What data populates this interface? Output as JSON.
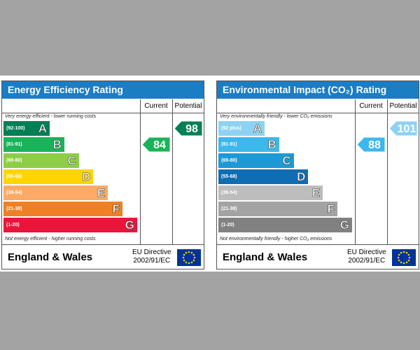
{
  "panels": [
    {
      "title": "Energy Efficiency Rating",
      "current_header": "Current",
      "potential_header": "Potential",
      "top_note": "Very energy efficient - lower running costs",
      "bottom_note": "Not energy efficient - higher running costs",
      "bands": [
        {
          "range": "(92-100)",
          "letter": "A",
          "color": "#008054"
        },
        {
          "range": "(81-91)",
          "letter": "B",
          "color": "#19b459"
        },
        {
          "range": "(69-80)",
          "letter": "C",
          "color": "#8dce46"
        },
        {
          "range": "(55-68)",
          "letter": "D",
          "color": "#ffd500"
        },
        {
          "range": "(39-54)",
          "letter": "E",
          "color": "#fcaa65"
        },
        {
          "range": "(21-38)",
          "letter": "F",
          "color": "#ef8023"
        },
        {
          "range": "(1-20)",
          "letter": "G",
          "color": "#e9153b"
        }
      ],
      "current": "84",
      "potential": "98",
      "region": "England & Wales",
      "directive": "EU Directive",
      "directive_code": "2002/91/EC"
    },
    {
      "title": "Environmental Impact (CO₂) Rating",
      "current_header": "Current",
      "potential_header": "Potential",
      "top_note": "Very environmentally friendly - lower CO₂ emissions",
      "bottom_note": "Not environmentally friendly - higher CO₂ emissions",
      "bands": [
        {
          "range": "(92 plus)",
          "letter": "A",
          "color": "#8ed2f3"
        },
        {
          "range": "(81-91)",
          "letter": "B",
          "color": "#3db8ec"
        },
        {
          "range": "(69-80)",
          "letter": "C",
          "color": "#1c9ad6"
        },
        {
          "range": "(55-68)",
          "letter": "D",
          "color": "#0f6db3"
        },
        {
          "range": "(39-54)",
          "letter": "E",
          "color": "#bdbdbd"
        },
        {
          "range": "(21-38)",
          "letter": "F",
          "color": "#a3a3a3"
        },
        {
          "range": "(1-20)",
          "letter": "G",
          "color": "#818181"
        }
      ],
      "current": "88",
      "potential": "101",
      "region": "England & Wales",
      "directive": "EU Directive",
      "directive_code": "2002/91/EC"
    }
  ]
}
